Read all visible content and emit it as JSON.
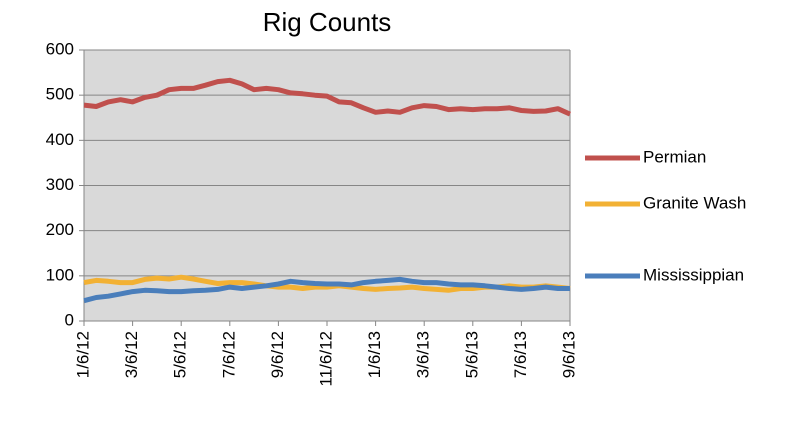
{
  "chart_data": {
    "type": "line",
    "title": "Rig Counts",
    "categories": [
      "1/6/12",
      null,
      null,
      null,
      "3/6/12",
      null,
      null,
      null,
      "5/6/12",
      null,
      null,
      null,
      "7/6/12",
      null,
      null,
      null,
      "9/6/12",
      null,
      null,
      null,
      "11/6/12",
      null,
      null,
      null,
      "1/6/13",
      null,
      null,
      null,
      "3/6/13",
      null,
      null,
      null,
      "5/6/13",
      null,
      null,
      null,
      "7/6/13",
      null,
      null,
      null,
      "9/6/13"
    ],
    "series": [
      {
        "name": "Permian",
        "color": "#c0504d",
        "values": [
          478,
          475,
          485,
          490,
          485,
          495,
          500,
          512,
          515,
          515,
          522,
          530,
          533,
          525,
          512,
          515,
          512,
          505,
          503,
          500,
          498,
          485,
          483,
          472,
          462,
          465,
          462,
          472,
          477,
          475,
          468,
          470,
          468,
          470,
          470,
          472,
          466,
          464,
          465,
          470,
          458
        ]
      },
      {
        "name": "Granite Wash",
        "color": "#f2b134",
        "values": [
          85,
          90,
          88,
          85,
          85,
          92,
          95,
          93,
          97,
          93,
          88,
          83,
          85,
          85,
          82,
          78,
          75,
          75,
          72,
          75,
          75,
          78,
          75,
          72,
          70,
          72,
          73,
          75,
          72,
          70,
          68,
          72,
          72,
          75,
          75,
          78,
          75,
          75,
          78,
          75,
          72
        ]
      },
      {
        "name": "Mississippian",
        "color": "#4a7ebb",
        "values": [
          45,
          52,
          55,
          60,
          65,
          68,
          67,
          65,
          65,
          67,
          68,
          70,
          75,
          72,
          75,
          78,
          82,
          88,
          85,
          83,
          82,
          82,
          80,
          85,
          88,
          90,
          92,
          88,
          85,
          85,
          82,
          80,
          80,
          78,
          75,
          72,
          70,
          72,
          75,
          72,
          72
        ]
      }
    ],
    "ylim": [
      0,
      600
    ],
    "yticks": [
      0,
      100,
      200,
      300,
      400,
      500,
      600
    ],
    "grid": true,
    "legend": "right"
  }
}
